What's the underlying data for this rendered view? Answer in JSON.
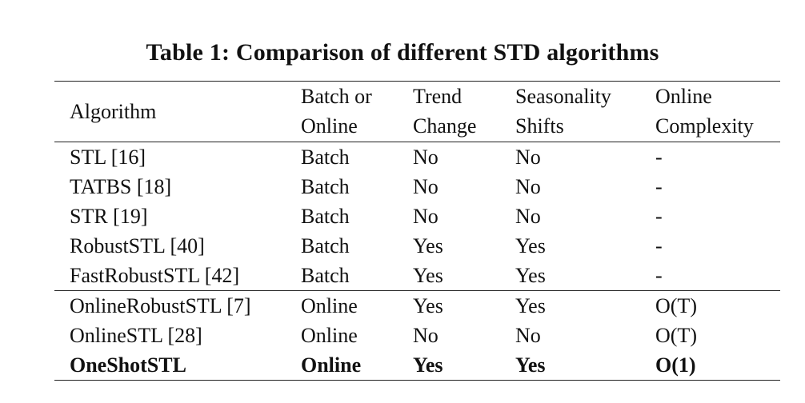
{
  "caption": "Table 1: Comparison of different STD algorithms",
  "table": {
    "headers": [
      [
        "Algorithm"
      ],
      [
        "Batch or",
        "Online"
      ],
      [
        "Trend",
        "Change"
      ],
      [
        "Seasonality",
        "Shifts"
      ],
      [
        "Online",
        "Complexity"
      ]
    ],
    "rows": [
      [
        "STL [16]",
        "Batch",
        "No",
        "No",
        "-"
      ],
      [
        "TATBS [18]",
        "Batch",
        "No",
        "No",
        "-"
      ],
      [
        "STR [19]",
        "Batch",
        "No",
        "No",
        "-"
      ],
      [
        "RobustSTL [40]",
        "Batch",
        "Yes",
        "Yes",
        "-"
      ],
      [
        "FastRobustSTL [42]",
        "Batch",
        "Yes",
        "Yes",
        "-"
      ],
      [
        "OnlineRobustSTL [7]",
        "Online",
        "Yes",
        "Yes",
        "O(T)"
      ],
      [
        "OnlineSTL [28]",
        "Online",
        "No",
        "No",
        "O(T)"
      ],
      [
        "OneShotSTL",
        "Online",
        "Yes",
        "Yes",
        "O(1)"
      ]
    ]
  }
}
